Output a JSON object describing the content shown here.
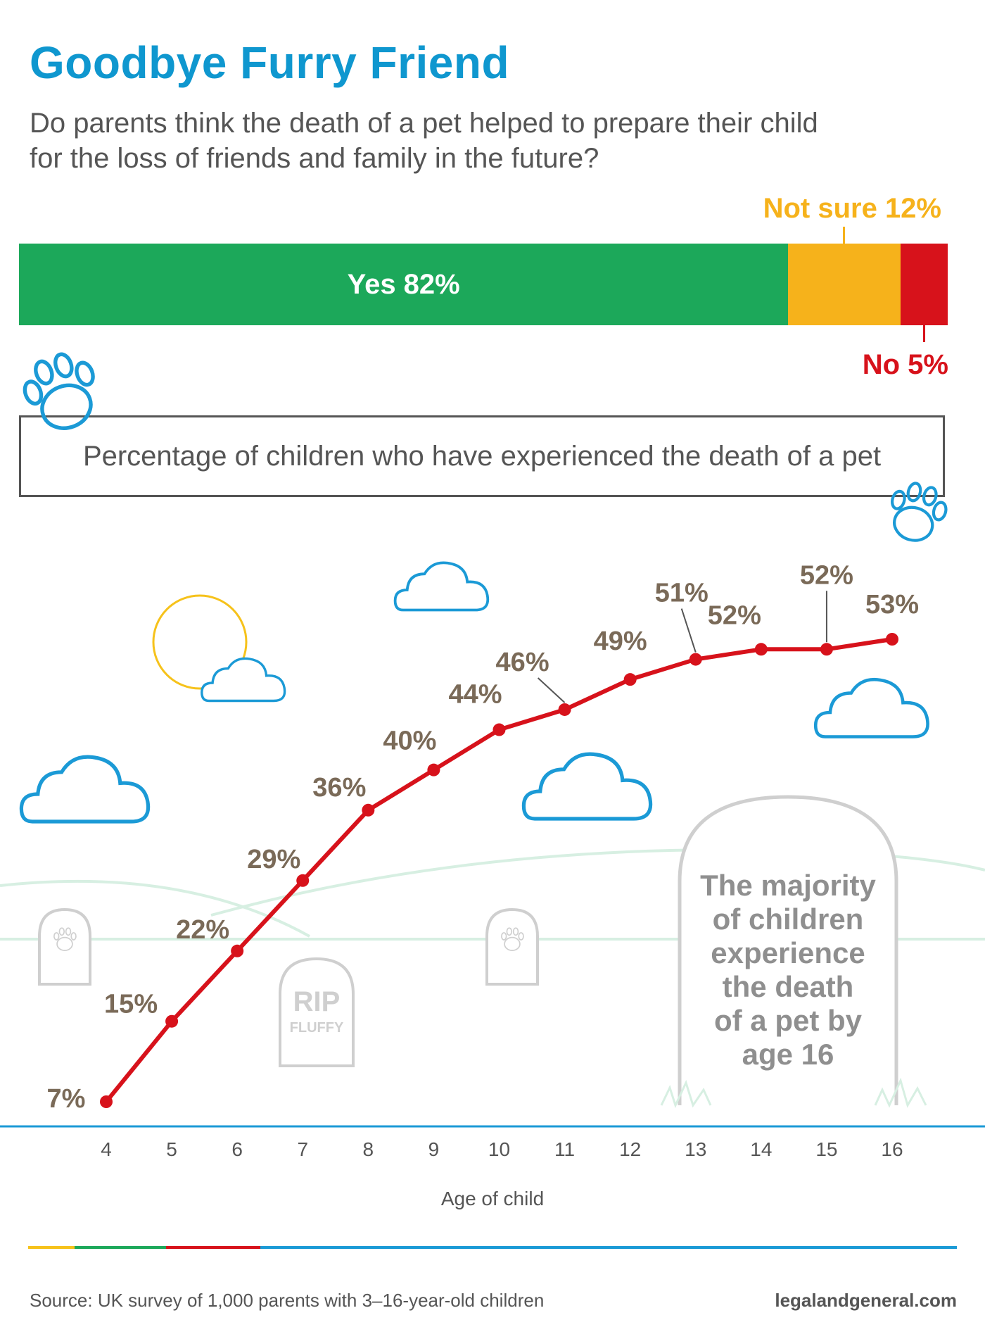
{
  "title": "Goodbye Furry Friend",
  "subtitle": "Do parents think the death of a pet helped to prepare their child for the loss of friends and family in the future?",
  "survey": {
    "segments": [
      {
        "label": "Yes 82%",
        "value": 82,
        "color": "#1ca85a"
      },
      {
        "label": "Not sure 12%",
        "value": 12,
        "color": "#f6b21b"
      },
      {
        "label": "No 5%",
        "value": 5,
        "color": "#d7121b"
      }
    ]
  },
  "chart_box_title": "Percentage of children who have experienced the death of a pet",
  "tombstone": {
    "rip": "RIP",
    "name": "FLUFFY",
    "note": [
      "The majority",
      "of children",
      "experience",
      "the death",
      "of a pet by",
      "age 16"
    ]
  },
  "source": "Source: UK survey of 1,000 parents with 3–16-year-old children",
  "site": "legalandgeneral.com",
  "colors": {
    "accent_blue": "#0f97cf",
    "line_red": "#d7121b",
    "label_brown": "#7a6a58",
    "green": "#1ca85a",
    "orange": "#f6b21b"
  },
  "chart_data": {
    "type": "line",
    "title": "Percentage of children who have experienced the death of a pet",
    "xlabel": "Age of child",
    "ylabel": "",
    "x": [
      4,
      5,
      6,
      7,
      8,
      9,
      10,
      11,
      12,
      13,
      14,
      15,
      16
    ],
    "series": [
      {
        "values": [
          7,
          15,
          22,
          29,
          36,
          40,
          44,
          46,
          49,
          51,
          52,
          52,
          53
        ]
      }
    ],
    "data_labels": [
      "7%",
      "15%",
      "22%",
      "29%",
      "36%",
      "40%",
      "44%",
      "46%",
      "49%",
      "51%",
      "52%",
      "52%",
      "53%"
    ],
    "ylim": [
      0,
      60
    ],
    "grid": false
  }
}
